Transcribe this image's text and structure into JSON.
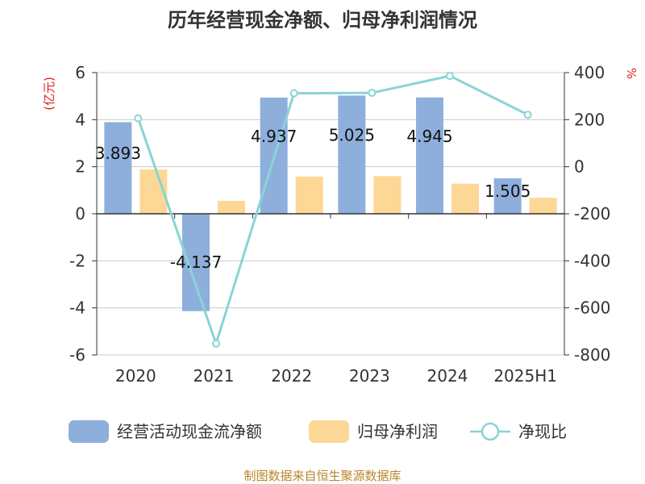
{
  "chart_data": {
    "type": "bar",
    "title": "历年经营现金净额、归母净利润情况",
    "categories": [
      "2020",
      "2021",
      "2022",
      "2023",
      "2024",
      "2025H1"
    ],
    "left_axis": {
      "unit": "(亿元)",
      "ylim": [
        -6,
        6
      ],
      "ticks": [
        6,
        4,
        2,
        0,
        -2,
        -4,
        -6
      ]
    },
    "right_axis": {
      "unit": "%",
      "ylim": [
        -800,
        400
      ],
      "ticks": [
        400,
        200,
        0,
        -200,
        -400,
        -600,
        -800
      ]
    },
    "series": [
      {
        "name": "经营活动现金流净额",
        "type": "bar",
        "axis": "left",
        "color": "#8eafdc",
        "values": [
          3.893,
          -4.137,
          4.937,
          5.025,
          4.945,
          1.505
        ],
        "labels": [
          "3.893",
          "-4.137",
          "4.937",
          "5.025",
          "4.945",
          "1.505"
        ]
      },
      {
        "name": "归母净利润",
        "type": "bar",
        "axis": "left",
        "color": "#fdd796",
        "values": [
          1.88,
          0.55,
          1.58,
          1.6,
          1.28,
          0.68
        ]
      },
      {
        "name": "净现比",
        "type": "line",
        "axis": "right",
        "color": "#88d4d6",
        "values": [
          206,
          -752,
          312,
          314,
          386,
          221
        ]
      }
    ],
    "grid": true,
    "legend_position": "bottom",
    "source": "制图数据来自恒生聚源数据库"
  }
}
